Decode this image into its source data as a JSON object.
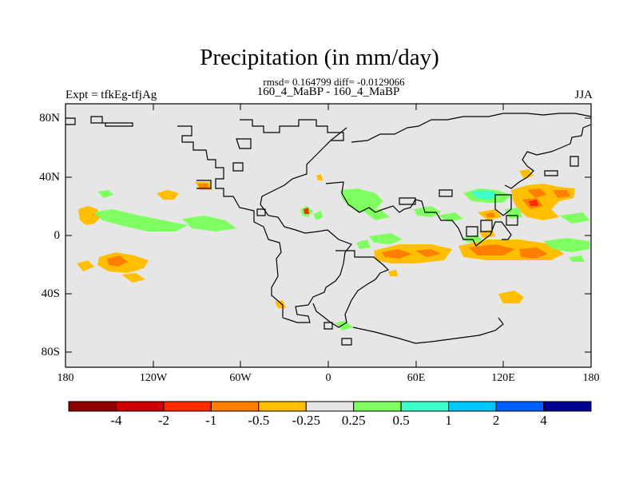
{
  "title": "Precipitation (in mm/day)",
  "stats_line": "rmsd= 0.164799 diff= -0.0129066",
  "run_line": "160_4_MaBP - 160_4_MaBP",
  "experiment_label": "Expt = tfkEg-tfjAg",
  "season_label": "JJA",
  "map": {
    "background_color": "#e6e6e6",
    "lat_ticks": [
      "80N",
      "40N",
      "0",
      "40S",
      "80S"
    ],
    "lon_ticks": [
      "180",
      "120W",
      "60W",
      "0",
      "60E",
      "120E",
      "180"
    ]
  },
  "colorbar": {
    "colors": [
      "#8b0000",
      "#cc0000",
      "#ff2a00",
      "#ff7f00",
      "#ffbf00",
      "#e6e6e6",
      "#80ff60",
      "#3cffcc",
      "#00c8ff",
      "#0060ff",
      "#000090"
    ],
    "labels": [
      "-4",
      "-2",
      "-1",
      "-0.5",
      "-0.25",
      "0.25",
      "0.5",
      "1",
      "2",
      "4"
    ]
  }
}
